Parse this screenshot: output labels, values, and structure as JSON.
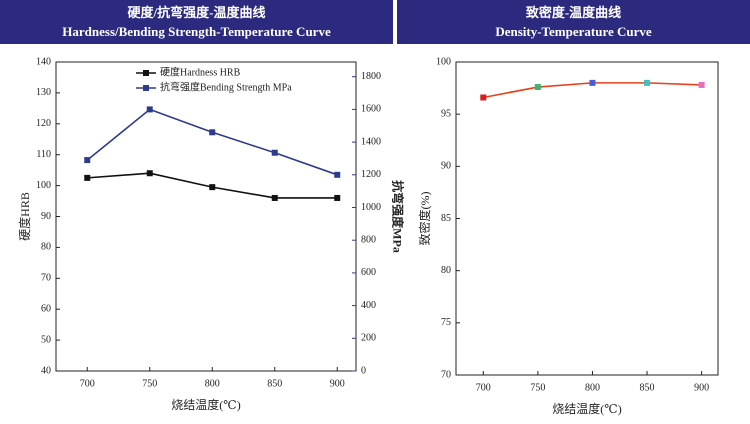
{
  "chart_data": [
    {
      "type": "line",
      "title": "硬度/抗弯强度-温度曲线",
      "subtitle": "Hardness/Bending Strength-Temperature Curve",
      "x": [
        700,
        750,
        800,
        850,
        900
      ],
      "xlim": [
        675,
        915
      ],
      "xticks": [
        700,
        750,
        800,
        850,
        900
      ],
      "ylim": [
        40,
        140
      ],
      "yticks": [
        40,
        50,
        60,
        70,
        80,
        90,
        100,
        110,
        120,
        130,
        140
      ],
      "y2lim": [
        0,
        1890
      ],
      "y2ticks": [
        0,
        200,
        400,
        600,
        800,
        1000,
        1200,
        1400,
        1600,
        1800
      ],
      "xlabel": "烧结温度(℃)",
      "ylabel": "硬度HRB",
      "y2label": "抗弯强度MPa",
      "legend": "upper center",
      "series": [
        {
          "name": "硬度Hardness HRB",
          "color": "#111111",
          "values": [
            102.5,
            104,
            99.5,
            96,
            96
          ]
        },
        {
          "name": "抗弯强度Bending Strength MPa",
          "color": "#2e3a8c",
          "axis": "y2",
          "values": [
            1290,
            1600,
            1460,
            1335,
            1200
          ]
        }
      ]
    },
    {
      "type": "line",
      "title": "致密度-温度曲线",
      "subtitle": "Density-Temperature Curve",
      "x": [
        700,
        750,
        800,
        850,
        900
      ],
      "xlim": [
        675,
        915
      ],
      "xticks": [
        700,
        750,
        800,
        850,
        900
      ],
      "ylim": [
        70,
        100
      ],
      "yticks": [
        70,
        75,
        80,
        85,
        90,
        95,
        100
      ],
      "xlabel": "烧结温度(℃)",
      "ylabel": "致密度(%)",
      "series": [
        {
          "color": "#e8401c",
          "marker_colors": [
            "#d62020",
            "#3cb371",
            "#4a5bd6",
            "#40c0c0",
            "#e070c0"
          ],
          "values": [
            96.6,
            97.6,
            98.0,
            98.0,
            97.8
          ]
        }
      ]
    }
  ]
}
